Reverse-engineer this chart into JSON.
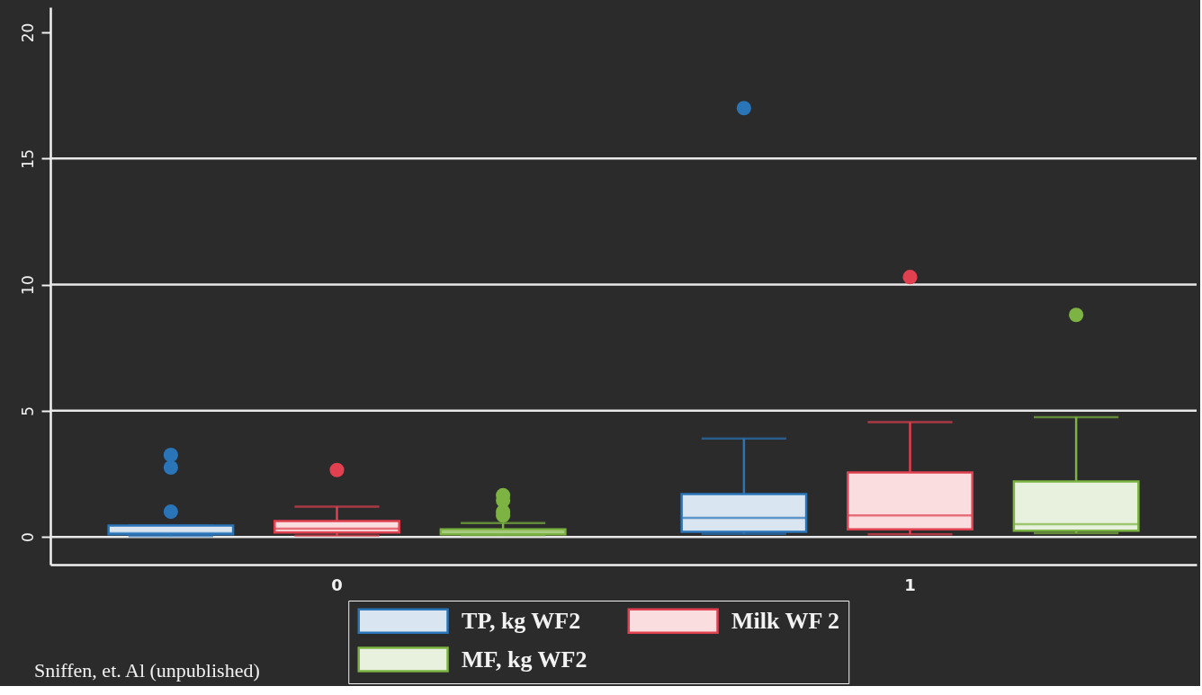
{
  "chart_data": {
    "type": "box",
    "categories": [
      "0",
      "1"
    ],
    "series": [
      {
        "name": "TP, kg WF2",
        "color": "#2a74b8",
        "boxes": [
          {
            "low": 0.03,
            "q1": 0.1,
            "median": 0.15,
            "q3": 0.45,
            "high": 0.45,
            "outliers": [
              3.25,
              2.75,
              1.0
            ]
          },
          {
            "low": 0.12,
            "q1": 0.2,
            "median": 0.75,
            "q3": 1.7,
            "high": 3.9,
            "outliers": [
              17.0
            ]
          }
        ]
      },
      {
        "name": "Milk WF 2",
        "color": "#e0404f",
        "boxes": [
          {
            "low": 0.05,
            "q1": 0.17,
            "median": 0.33,
            "q3": 0.63,
            "high": 1.2,
            "outliers": [
              2.65
            ]
          },
          {
            "low": 0.1,
            "q1": 0.3,
            "median": 0.85,
            "q3": 2.55,
            "high": 4.55,
            "outliers": [
              10.3
            ]
          }
        ]
      },
      {
        "name": "MF, kg WF2",
        "color": "#7cb342",
        "boxes": [
          {
            "low": 0.07,
            "q1": 0.1,
            "median": 0.2,
            "q3": 0.3,
            "high": 0.55,
            "outliers": [
              1.65,
              1.45,
              1.0,
              0.85
            ]
          },
          {
            "low": 0.15,
            "q1": 0.25,
            "median": 0.5,
            "q3": 2.2,
            "high": 4.75,
            "outliers": [
              8.8
            ]
          }
        ]
      }
    ],
    "ylim": [
      -1.1,
      21
    ],
    "yticks": [
      0,
      5,
      10,
      15,
      20
    ],
    "ref_lines": [
      {
        "axis": "y",
        "value": 0,
        "color": "#e8e8e8"
      },
      {
        "axis": "y",
        "value": 5,
        "color": "#e8e8e8"
      },
      {
        "axis": "y",
        "value": 10,
        "color": "#e8e8e8"
      },
      {
        "axis": "y",
        "value": 15,
        "color": "#e8e8e8"
      }
    ],
    "legend": "bottom",
    "annotations": [
      "Sniffen, et. Al (unpublished)"
    ]
  }
}
